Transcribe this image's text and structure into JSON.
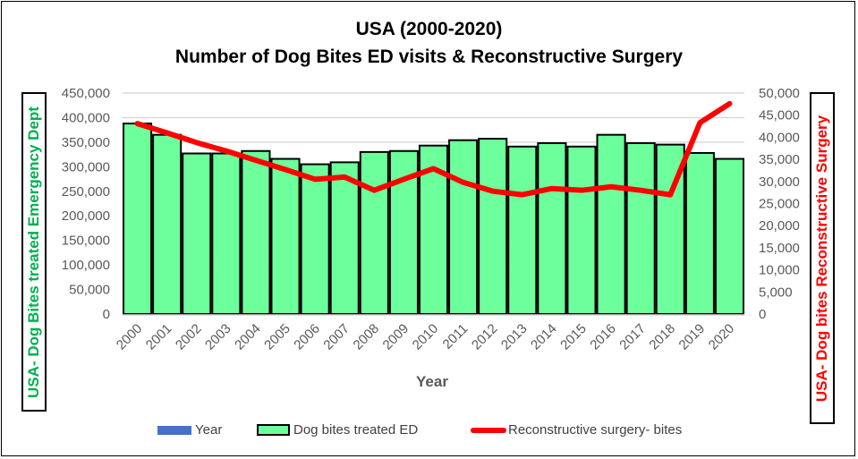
{
  "chart_data": {
    "type": "bar",
    "title": "USA (2000-2020)",
    "subtitle": "Number of Dog Bites ED visits & Reconstructive Surgery",
    "xlabel": "Year",
    "ylabel": "USA- Dog Bites treated Emergency Dept",
    "y2label": "USA- Dog bites Reconstructive Surgery",
    "ylim": [
      0,
      450000
    ],
    "y2lim": [
      0,
      50000
    ],
    "yticks": [
      "0",
      "50,000",
      "100,000",
      "150,000",
      "200,000",
      "250,000",
      "300,000",
      "350,000",
      "400,000",
      "450,000"
    ],
    "y2ticks": [
      "0",
      "5,000",
      "10,000",
      "15,000",
      "20,000",
      "25,000",
      "30,000",
      "35,000",
      "40,000",
      "45,000",
      "50,000"
    ],
    "grid": true,
    "legend_position": "bottom",
    "categories": [
      "2000",
      "2001",
      "2002",
      "2003",
      "2004",
      "2005",
      "2006",
      "2007",
      "2008",
      "2009",
      "2010",
      "2011",
      "2012",
      "2013",
      "2014",
      "2015",
      "2016",
      "2017",
      "2018",
      "2019",
      "2020"
    ],
    "series": [
      {
        "name": "Dog bites treated ED",
        "type": "bar",
        "axis": "left",
        "color": "#6cff9b",
        "values": [
          388000,
          365000,
          327000,
          327000,
          332000,
          316000,
          305000,
          309000,
          330000,
          332000,
          343000,
          354000,
          357000,
          341000,
          348000,
          341000,
          365000,
          348000,
          345000,
          328000,
          316000
        ]
      },
      {
        "name": "Reconstructive surgery- bites",
        "type": "line",
        "axis": "right",
        "color": "#ff0000",
        "values": [
          43100,
          41000,
          38800,
          36900,
          34800,
          32700,
          30500,
          31000,
          28000,
          30500,
          32900,
          29800,
          27800,
          27000,
          28400,
          28000,
          28800,
          28000,
          27000,
          43300,
          47600
        ]
      }
    ],
    "legend": [
      {
        "label": "Year",
        "color": "#4472c4"
      },
      {
        "label": "Dog bites treated ED",
        "color": "#6cff9b"
      },
      {
        "label": "Reconstructive surgery- bites",
        "color": "#ff0000"
      }
    ]
  }
}
